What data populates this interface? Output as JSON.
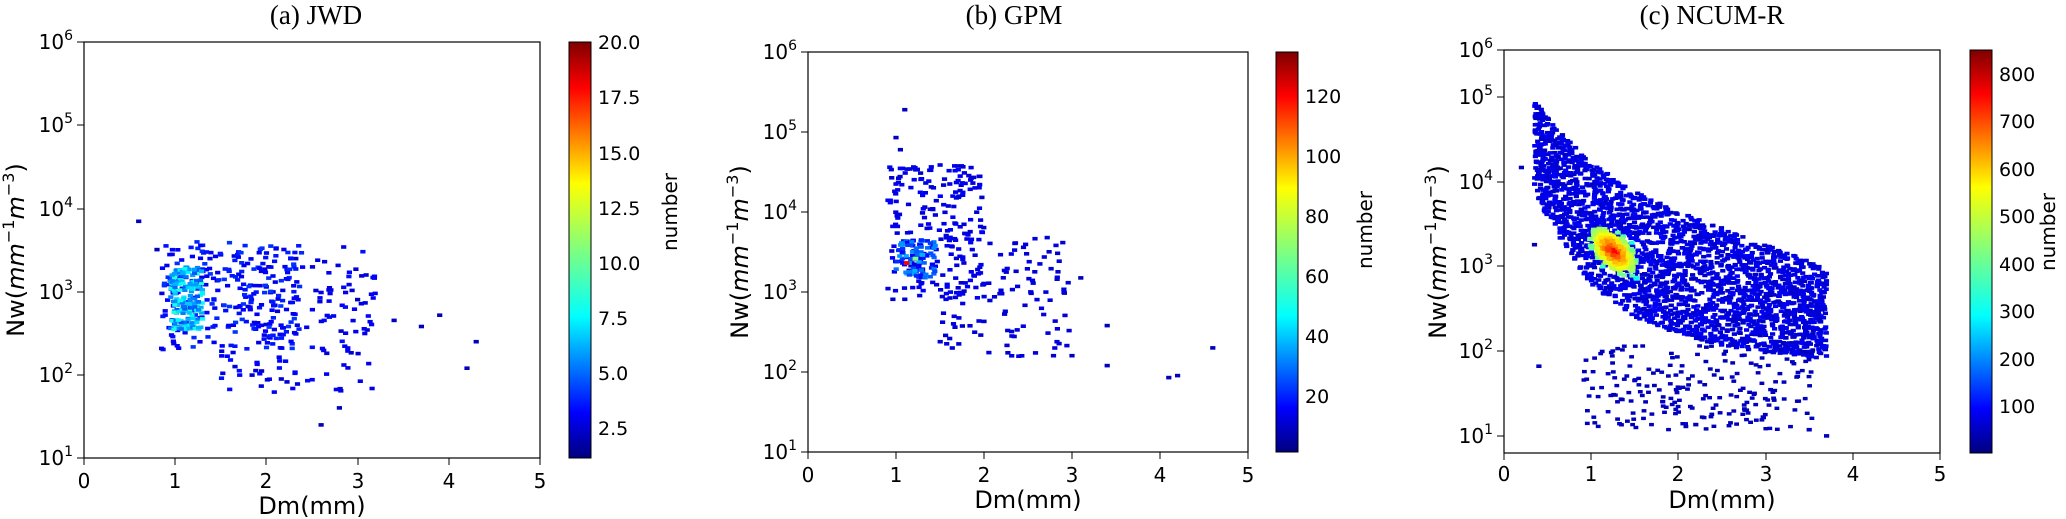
{
  "chart_data": [
    {
      "type": "scatter",
      "title": "(a) JWD",
      "xlabel": "Dm(mm)",
      "ylabel": "Nw(mm⁻¹m⁻³)",
      "ylabel_parts": {
        "pre": "Nw(",
        "mm": "mm",
        "e1": "−1",
        "m": "m",
        "e2": "−3",
        "post": ")"
      },
      "xlim": [
        0,
        5
      ],
      "ylim": [
        10,
        1000000
      ],
      "yscale": "log",
      "xticks": [
        "0",
        "1",
        "2",
        "3",
        "4",
        "5"
      ],
      "yticks": [
        {
          "base": "10",
          "exp": "1"
        },
        {
          "base": "10",
          "exp": "2"
        },
        {
          "base": "10",
          "exp": "3"
        },
        {
          "base": "10",
          "exp": "4"
        },
        {
          "base": "10",
          "exp": "5"
        },
        {
          "base": "10",
          "exp": "6"
        }
      ],
      "colorbar": {
        "label": "number",
        "range": [
          1,
          20
        ],
        "ticks": [
          "2.5",
          "5.0",
          "7.5",
          "10.0",
          "12.5",
          "15.0",
          "17.5",
          "20.0"
        ],
        "colormap": "jet"
      },
      "clusters": [
        {
          "dm": [
            0.95,
            1.3
          ],
          "nw": [
            350,
            2000
          ],
          "count": 170,
          "level": [
            0.12,
            0.34
          ]
        },
        {
          "dm": [
            0.85,
            2.4
          ],
          "nw": [
            200,
            4000
          ],
          "count": 240,
          "level": [
            0.02,
            0.1
          ]
        },
        {
          "dm": [
            1.5,
            3.2
          ],
          "nw": [
            60,
            3500
          ],
          "count": 150,
          "level": [
            0.0,
            0.06
          ]
        }
      ],
      "outliers": [
        [
          0.6,
          7000
        ],
        [
          0.8,
          3200
        ],
        [
          2.6,
          25
        ],
        [
          3.4,
          450
        ],
        [
          3.7,
          380
        ],
        [
          3.9,
          520
        ],
        [
          4.2,
          120
        ],
        [
          4.3,
          250
        ],
        [
          3.0,
          800
        ],
        [
          2.8,
          40
        ]
      ]
    },
    {
      "type": "scatter",
      "title": "(b) GPM",
      "xlabel": "Dm(mm)",
      "ylabel": "Nw(mm⁻¹m⁻³)",
      "ylabel_parts": {
        "pre": "Nw(",
        "mm": "mm",
        "e1": "−1",
        "m": "m",
        "e2": "−3",
        "post": ")"
      },
      "xlim": [
        0,
        5
      ],
      "ylim": [
        10,
        1000000
      ],
      "yscale": "log",
      "xticks": [
        "0",
        "1",
        "2",
        "3",
        "4",
        "5"
      ],
      "yticks": [
        {
          "base": "10",
          "exp": "1"
        },
        {
          "base": "10",
          "exp": "2"
        },
        {
          "base": "10",
          "exp": "3"
        },
        {
          "base": "10",
          "exp": "4"
        },
        {
          "base": "10",
          "exp": "5"
        },
        {
          "base": "10",
          "exp": "6"
        }
      ],
      "colorbar": {
        "label": "number",
        "range": [
          1,
          135
        ],
        "ticks": [
          "20",
          "40",
          "60",
          "80",
          "100",
          "120"
        ],
        "colormap": "jet"
      },
      "clusters": [
        {
          "dm": [
            1.0,
            1.45
          ],
          "nw": [
            1500,
            4500
          ],
          "count": 90,
          "level": [
            0.04,
            0.22
          ]
        },
        {
          "dm": [
            0.9,
            2.0
          ],
          "nw": [
            800,
            40000
          ],
          "count": 220,
          "level": [
            0.0,
            0.04
          ]
        },
        {
          "dm": [
            1.5,
            3.0
          ],
          "nw": [
            150,
            5000
          ],
          "count": 110,
          "level": [
            0.0,
            0.02
          ]
        }
      ],
      "outliers": [
        [
          1.1,
          190000
        ],
        [
          1.0,
          85000
        ],
        [
          1.05,
          60000
        ],
        [
          4.1,
          85
        ],
        [
          4.2,
          90
        ],
        [
          4.6,
          200
        ],
        [
          3.4,
          380
        ],
        [
          3.4,
          120
        ],
        [
          3.1,
          1500
        ],
        [
          3.0,
          160
        ]
      ]
    },
    {
      "type": "scatter",
      "title": "(c) NCUM-R",
      "xlabel": "Dm(mm)",
      "ylabel": "Nw(mm⁻¹m⁻³)",
      "ylabel_parts": {
        "pre": "Nw(",
        "mm": "mm",
        "e1": "−1",
        "m": "m",
        "e2": "−3",
        "post": ")"
      },
      "xlim": [
        0,
        5
      ],
      "ylim": [
        6,
        1000000
      ],
      "yscale": "log",
      "xticks": [
        "0",
        "1",
        "2",
        "3",
        "4",
        "5"
      ],
      "yticks": [
        {
          "base": "10",
          "exp": "1"
        },
        {
          "base": "10",
          "exp": "2"
        },
        {
          "base": "10",
          "exp": "3"
        },
        {
          "base": "10",
          "exp": "4"
        },
        {
          "base": "10",
          "exp": "5"
        },
        {
          "base": "10",
          "exp": "6"
        }
      ],
      "colorbar": {
        "label": "number",
        "range": [
          1,
          850
        ],
        "ticks": [
          "100",
          "200",
          "300",
          "400",
          "500",
          "600",
          "700",
          "800"
        ],
        "colormap": "jet"
      },
      "band": {
        "top": [
          [
            0.35,
            230000
          ],
          [
            0.6,
            100000
          ],
          [
            1.0,
            35000
          ],
          [
            1.5,
            15000
          ],
          [
            2.0,
            8000
          ],
          [
            2.5,
            5000
          ],
          [
            3.0,
            3000
          ],
          [
            3.7,
            1500
          ]
        ],
        "bottom": [
          [
            0.35,
            15000
          ],
          [
            0.6,
            4000
          ],
          [
            1.0,
            900
          ],
          [
            1.5,
            350
          ],
          [
            2.0,
            200
          ],
          [
            2.5,
            150
          ],
          [
            3.0,
            120
          ],
          [
            3.7,
            100
          ]
        ]
      },
      "hotspot": {
        "dm": 1.25,
        "nw": 2500,
        "peak": 850
      },
      "scatter_below": {
        "dm": [
          0.9,
          3.6
        ],
        "nw": [
          12,
          150
        ],
        "count": 220
      },
      "outliers": [
        [
          0.2,
          30000
        ],
        [
          0.4,
          80
        ],
        [
          0.35,
          3000
        ],
        [
          3.7,
          10
        ],
        [
          3.5,
          12
        ],
        [
          2.2,
          14
        ]
      ]
    }
  ]
}
